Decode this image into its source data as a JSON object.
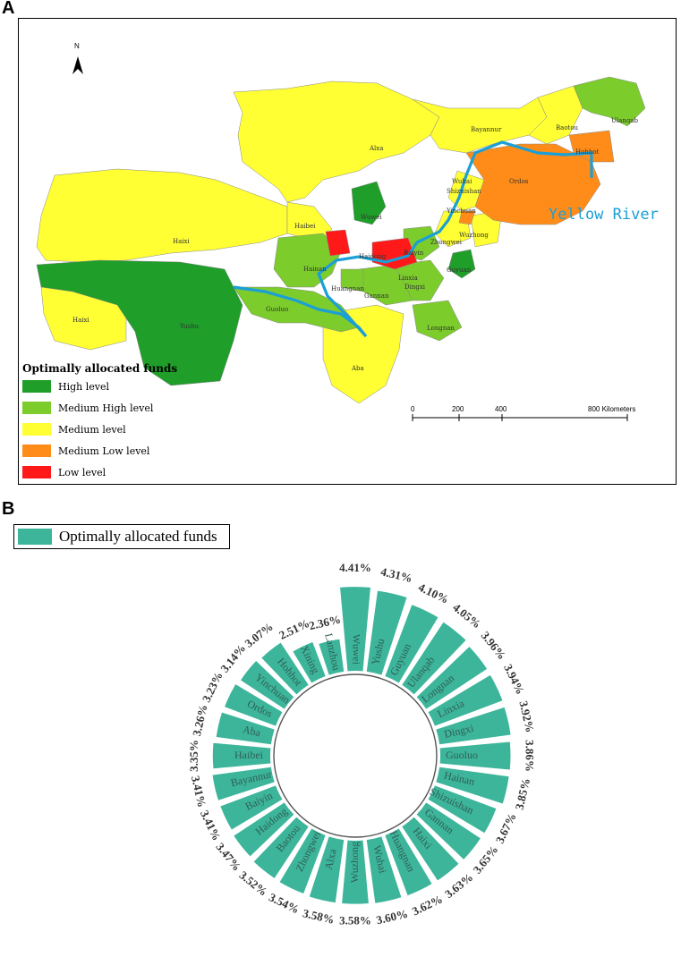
{
  "panel_a": {
    "letter": "A",
    "legend_title": "Optimally allocated funds",
    "legend_items": [
      {
        "label": "High level",
        "color": "#1f9e2a"
      },
      {
        "label": "Medium High level",
        "color": "#7ccc2c"
      },
      {
        "label": "Medium level",
        "color": "#ffff33"
      },
      {
        "label": "Medium Low level",
        "color": "#ff8c19"
      },
      {
        "label": "Low level",
        "color": "#ff1919"
      }
    ],
    "river_label": "Yellow River",
    "north_label": "N",
    "scale": {
      "t0": "0",
      "t1": "200",
      "t2": "400",
      "t3": "800 Kilometers"
    },
    "labels": {
      "alxa": "Alxa",
      "bayannur": "Bayannur",
      "baotou": "Baotou",
      "ulanqab": "Ulanqab",
      "hohhot": "Hohhot",
      "ordos": "Ordos",
      "wuhai": "Wuhai",
      "shizuishan": "Shizuishan",
      "yinchuan": "Yinchuan",
      "wuzhong": "Wuzhong",
      "zhongwei": "Zhongwei",
      "guyuan": "Guyuan",
      "wuwei": "Wuwei",
      "haibei": "Haibei",
      "haixi": "Haixi",
      "haixi2": "Haixi",
      "haidong": "Haidong",
      "xining": "Xining",
      "baiyin": "Baiyin",
      "lanzhou": "Lanzhou",
      "hainan": "Hainan",
      "linxia": "Linxia",
      "huangnan": "Huangnan",
      "gannan": "Gannan",
      "dingxi": "Dingxi",
      "longnan": "Longnan",
      "yushu": "Yushu",
      "guoluo": "Guoluo",
      "aba": "Aba"
    }
  },
  "panel_b": {
    "letter": "B",
    "legend_label": "Optimally allocated funds",
    "bar_color": "#3db59b"
  },
  "chart_data": {
    "type": "bar",
    "subtype": "radial",
    "categories": [
      "Wuwei",
      "Yushu",
      "Guyuan",
      "Ulanqab",
      "Longnan",
      "Linxia",
      "Dingxi",
      "Guoluo",
      "Hainan",
      "Shizuishan",
      "Gannan",
      "Haixi",
      "Huangnan",
      "Wuhai",
      "Wuzhong",
      "Alxa",
      "Zhongwei",
      "Baotou",
      "Haidong",
      "Baiyin",
      "Bayannur",
      "Haibei",
      "Aba",
      "Ordos",
      "Yinchuan",
      "Hohhot",
      "Xining",
      "Lanzhou"
    ],
    "values": [
      4.41,
      4.31,
      4.1,
      4.05,
      3.96,
      3.94,
      3.92,
      3.86,
      3.85,
      3.67,
      3.65,
      3.63,
      3.62,
      3.6,
      3.58,
      3.58,
      3.54,
      3.52,
      3.47,
      3.41,
      3.41,
      3.35,
      3.26,
      3.23,
      3.14,
      3.07,
      2.51,
      2.36
    ],
    "value_labels": [
      "4.41%",
      "4.31%",
      "4.10%",
      "4.05%",
      "3.96%",
      "3.94%",
      "3.92%",
      "3.86%",
      "3.85%",
      "3.67%",
      "3.65%",
      "3.63%",
      "3.62%",
      "3.60%",
      "3.58%",
      "3.58%",
      "3.54%",
      "3.52%",
      "3.47%",
      "3.41%",
      "3.41%",
      "3.35%",
      "3.26%",
      "3.23%",
      "3.14%",
      "3.07%",
      "2.51%",
      "2.36%"
    ],
    "series": [
      {
        "name": "Optimally allocated funds"
      }
    ],
    "unit": "%",
    "legend": "top-left"
  }
}
